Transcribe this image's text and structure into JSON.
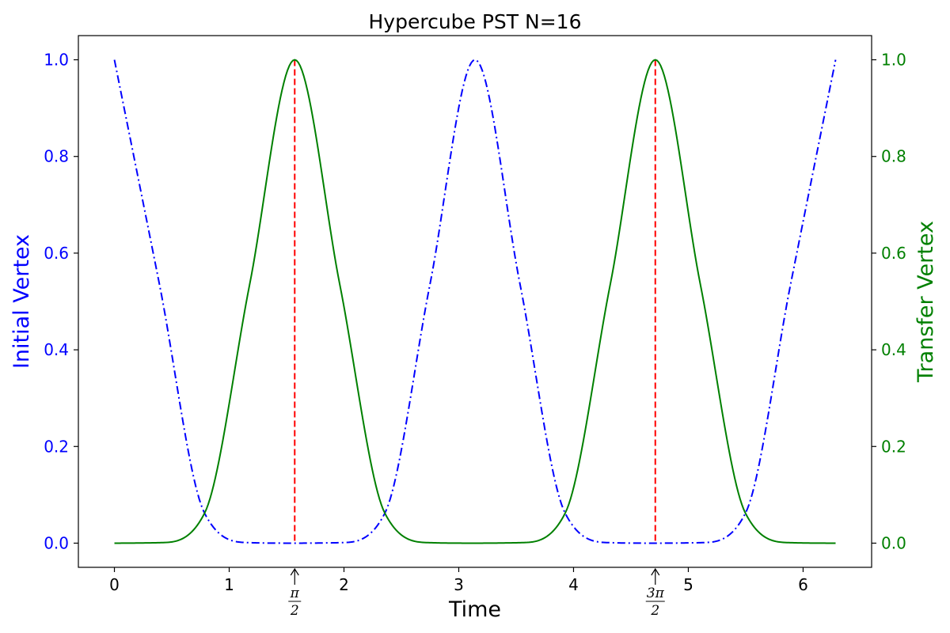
{
  "chart_data": {
    "type": "line",
    "title": "Hypercube PST N=16",
    "xlabel": "Time",
    "ylabel_left": "Initial Vertex",
    "ylabel_right": "Transfer Vertex",
    "xlim": [
      -0.314,
      6.597
    ],
    "ylim": [
      -0.05,
      1.05
    ],
    "x_ticks": [
      0,
      1,
      2,
      3,
      4,
      5,
      6
    ],
    "y_ticks": [
      0.0,
      0.2,
      0.4,
      0.6,
      0.8,
      1.0
    ],
    "y_tick_labels": [
      "0.0",
      "0.2",
      "0.4",
      "0.6",
      "0.8",
      "1.0"
    ],
    "grid": false,
    "legend": "none",
    "x_domain": [
      0,
      6.2832
    ],
    "series": [
      {
        "axis": "left",
        "color": "#0000ff",
        "style": "dash-dot",
        "x": [
          0,
          0.3927,
          0.7854,
          1.1781,
          1.5708,
          1.9635,
          2.3562,
          2.7489,
          3.1416,
          3.5343,
          3.927,
          4.3197,
          4.7124,
          5.1051,
          5.4978,
          5.8905,
          6.2832
        ],
        "values": [
          1.0,
          0.535,
          0.062,
          0.001,
          0.0,
          0.001,
          0.062,
          0.535,
          1.0,
          0.535,
          0.062,
          0.001,
          0.0,
          0.001,
          0.062,
          0.535,
          1.0
        ]
      },
      {
        "axis": "right",
        "color": "#008000",
        "style": "solid",
        "x": [
          0,
          0.3927,
          0.7854,
          1.1781,
          1.5708,
          1.9635,
          2.3562,
          2.7489,
          3.1416,
          3.5343,
          3.927,
          4.3197,
          4.7124,
          5.1051,
          5.4978,
          5.8905,
          6.2832
        ],
        "values": [
          0.0,
          0.001,
          0.062,
          0.535,
          1.0,
          0.535,
          0.062,
          0.001,
          0.0,
          0.001,
          0.062,
          0.535,
          1.0,
          0.535,
          0.062,
          0.001,
          0.0
        ]
      }
    ],
    "vlines": [
      {
        "x": 1.5708,
        "color": "#ff0000",
        "style": "dashed"
      },
      {
        "x": 4.7124,
        "color": "#ff0000",
        "style": "dashed"
      }
    ],
    "annotations": [
      {
        "x": 1.5708,
        "numerator": "π",
        "denominator": "2"
      },
      {
        "x": 4.7124,
        "numerator": "3π",
        "denominator": "2"
      }
    ],
    "colors": {
      "left_axis": "#0000ff",
      "right_axis": "#008000",
      "vline": "#ff0000",
      "text": "#000000"
    }
  }
}
